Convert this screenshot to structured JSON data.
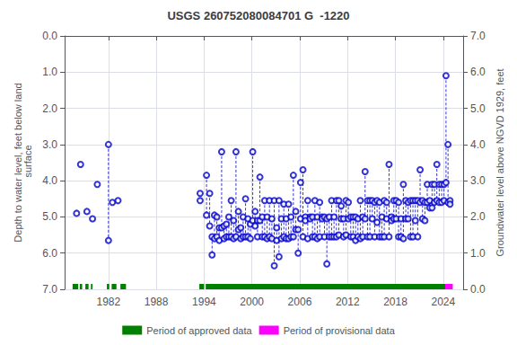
{
  "chart_data": {
    "type": "scatter",
    "title": "USGS 260752080084701 G  -1220",
    "ylabel": "Depth to water level, feet below land\n surface",
    "y2label": "Groundwater level above NGVD 1929, feet",
    "xlim": [
      1976.5,
      2026.5
    ],
    "xticks": [
      1982,
      1988,
      1994,
      2000,
      2006,
      2012,
      2018,
      2024
    ],
    "ylim": [
      7.0,
      0.0
    ],
    "yticks": [
      {
        "value": 0.0,
        "label": "0.0"
      },
      {
        "value": 1.0,
        "label": "1.0"
      },
      {
        "value": 2.0,
        "label": "2.0"
      },
      {
        "value": 3.0,
        "label": "3.0"
      },
      {
        "value": 4.0,
        "label": "4.0"
      },
      {
        "value": 5.0,
        "label": "5.0"
      },
      {
        "value": 6.0,
        "label": "6.0"
      },
      {
        "value": 7.0,
        "label": "7.0"
      }
    ],
    "y2lim": [
      0.0,
      7.0
    ],
    "y2ticks": [
      {
        "value": 0.0,
        "label": "0.0"
      },
      {
        "value": 1.0,
        "label": "1.0"
      },
      {
        "value": 2.0,
        "label": "2.0"
      },
      {
        "value": 3.0,
        "label": "3.0"
      },
      {
        "value": 4.0,
        "label": "4.0"
      },
      {
        "value": 5.0,
        "label": "5.0"
      },
      {
        "value": 6.0,
        "label": "6.0"
      },
      {
        "value": 7.0,
        "label": "7.0"
      }
    ],
    "grid": true,
    "legend": "bottom",
    "series": [
      {
        "type": "scatter",
        "marker": "open_circle",
        "line_style": "dashed",
        "color": "#0000cc",
        "x": [
          1978.0,
          1978.5,
          1979.3,
          1980.0,
          1980.6,
          1982.0,
          1982.5,
          1983.2,
          1993.5,
          1994.3,
          1994.7,
          1995.0,
          1995.3,
          1995.6,
          1995.9,
          1996.2,
          1996.5,
          1996.8,
          1997.1,
          1997.4,
          1997.7,
          1998.0,
          1998.3,
          1998.6,
          1998.9,
          1999.2,
          1999.5,
          1999.8,
          2000.1,
          2000.4,
          2000.7,
          2001.0,
          2001.3,
          2001.6,
          2001.9,
          2002.2,
          2002.5,
          2002.8,
          2003.1,
          2003.4,
          2003.7,
          2004.0,
          2004.3,
          2004.6,
          2004.9,
          2005.2,
          2005.5,
          2005.8,
          2006.1,
          2006.4,
          2006.7,
          2007.0,
          2007.3,
          2007.6,
          2007.9,
          2008.2,
          2008.5,
          2008.8,
          2009.1,
          2009.4,
          2009.7,
          2010.0,
          2010.3,
          2010.6,
          2010.9,
          2011.2,
          2011.5,
          2011.8,
          2012.1,
          2012.4,
          2012.7,
          2013.0,
          2013.3,
          2013.6,
          2013.9,
          2014.2,
          2014.5,
          2014.8,
          2015.1,
          2015.4,
          2015.7,
          2016.0,
          2016.3,
          2016.6,
          2016.9,
          2017.2,
          2017.5,
          2017.8,
          2018.1,
          2018.4,
          2018.7,
          2019.0,
          2019.3,
          2019.6,
          2019.9,
          2020.2,
          2020.5,
          2020.8,
          2021.1,
          2021.4,
          2021.7,
          2022.0,
          2022.3,
          2022.6,
          2022.9,
          2023.2,
          2023.5,
          2023.8,
          2024.1,
          2024.35,
          2024.6,
          2024.85
        ],
        "values": [
          [
            4.9
          ],
          [
            3.55
          ],
          [
            4.85
          ],
          [
            5.05
          ],
          [
            4.1
          ],
          [
            3.0,
            5.65
          ],
          [
            4.6
          ],
          [
            4.55
          ],
          [
            4.35,
            4.55
          ],
          [
            3.85,
            4.95
          ],
          [
            4.35,
            5.25
          ],
          [
            5.55,
            6.05
          ],
          [
            4.95,
            5.6
          ],
          [
            5.0,
            5.55
          ],
          [
            5.3,
            5.65
          ],
          [
            3.2,
            5.3
          ],
          [
            5.25,
            5.6
          ],
          [
            5.2,
            5.55
          ],
          [
            5.0,
            5.55
          ],
          [
            4.55,
            5.55
          ],
          [
            5.1,
            5.6
          ],
          [
            3.2,
            5.55
          ],
          [
            4.85,
            5.35
          ],
          [
            5.3,
            5.6
          ],
          [
            5.0,
            5.55
          ],
          [
            4.5,
            5.55
          ],
          [
            5.05,
            5.55
          ],
          [
            5.2,
            5.6
          ],
          [
            3.2,
            5.1
          ],
          [
            4.85,
            5.25
          ],
          [
            5.1,
            5.55
          ],
          [
            3.9,
            5.1
          ],
          [
            5.0,
            5.55
          ],
          [
            4.55,
            5.55
          ],
          [
            5.0,
            5.6
          ],
          [
            4.55,
            5.55
          ],
          [
            5.05,
            5.6
          ],
          [
            4.55,
            6.35
          ],
          [
            5.3,
            5.65
          ],
          [
            4.55,
            6.1
          ],
          [
            5.05,
            5.6
          ],
          [
            4.65,
            5.55
          ],
          [
            5.05,
            5.6
          ],
          [
            4.65,
            5.6
          ],
          [
            5.0,
            5.55
          ],
          [
            3.85,
            5.55
          ],
          [
            4.85,
            5.35
          ],
          [
            5.35,
            6.0
          ],
          [
            4.05,
            5.05
          ],
          [
            3.7,
            5.55
          ],
          [
            5.0,
            5.1
          ],
          [
            4.55,
            5.6
          ],
          [
            5.0,
            5.05
          ],
          [
            5.0,
            5.55
          ],
          [
            4.55,
            5.55
          ],
          [
            5.0,
            5.6
          ],
          [
            4.6,
            5.55
          ],
          [
            5.0,
            5.05
          ],
          [
            5.0,
            5.55
          ],
          [
            5.05,
            6.3
          ],
          [
            5.0,
            5.55
          ],
          [
            4.55,
            5.55
          ],
          [
            5.0,
            5.55
          ],
          [
            4.55,
            5.55
          ],
          [
            4.55,
            5.5
          ],
          [
            4.7,
            5.05
          ],
          [
            5.05,
            5.55
          ],
          [
            4.55,
            5.5
          ],
          [
            4.6,
            5.05
          ],
          [
            5.0,
            5.55
          ],
          [
            5.0,
            5.55
          ],
          [
            5.0,
            5.65
          ],
          [
            5.05,
            5.55
          ],
          [
            4.55,
            5.6
          ],
          [
            5.0,
            5.55
          ],
          [
            3.75,
            5.05
          ],
          [
            4.55,
            5.55
          ],
          [
            4.55,
            5.55
          ],
          [
            4.55,
            5.05
          ],
          [
            4.6,
            5.55
          ],
          [
            4.55,
            5.15
          ],
          [
            4.6,
            5.55
          ],
          [
            5.0,
            5.55
          ],
          [
            4.55,
            5.55
          ],
          [
            4.6,
            5.05
          ],
          [
            3.55,
            5.55
          ],
          [
            5.0,
            5.1
          ],
          [
            4.55,
            5.05
          ],
          [
            4.55,
            5.05
          ],
          [
            4.6,
            5.55
          ],
          [
            5.05,
            5.55
          ],
          [
            4.1,
            5.6
          ],
          [
            4.55,
            5.05
          ],
          [
            4.6,
            5.05
          ],
          [
            4.55,
            5.55
          ],
          [
            4.55,
            5.55
          ],
          [
            4.55,
            5.1
          ],
          [
            4.55,
            5.55
          ],
          [
            3.7,
            4.6
          ],
          [
            4.55,
            5.05
          ],
          [
            4.6,
            5.1
          ],
          [
            4.1,
            4.6
          ],
          [
            4.55,
            4.75
          ],
          [
            4.1,
            4.75
          ],
          [
            4.1,
            4.6
          ],
          [
            3.55,
            4.55
          ],
          [
            4.1,
            4.6
          ],
          [
            4.1,
            4.6
          ],
          [
            4.1,
            4.55
          ],
          [
            1.1,
            4.05
          ],
          [
            3.0,
            4.6
          ],
          [
            4.55,
            4.65
          ]
        ]
      },
      {
        "type": "period",
        "name": "Period of approved data",
        "color": "#008000",
        "values": [
          [
            1977.5,
            1978.2
          ],
          [
            1978.4,
            1978.7
          ],
          [
            1979.1,
            1979.5
          ],
          [
            1979.8,
            1980.0
          ],
          [
            1981.8,
            1982.1
          ],
          [
            1982.4,
            1983.0
          ],
          [
            1983.5,
            1984.2
          ],
          [
            1993.4,
            1994.0
          ],
          [
            1994.2,
            2024.25
          ]
        ]
      },
      {
        "type": "period",
        "name": "Period of provisional data",
        "color": "#ff00ff",
        "values": [
          [
            2024.25,
            2025.2
          ]
        ]
      }
    ]
  }
}
